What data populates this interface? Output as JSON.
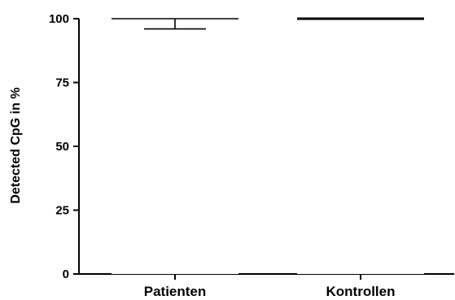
{
  "chart_data": {
    "type": "bar",
    "title": "",
    "xlabel": "",
    "ylabel": "Detected CpG in %",
    "ylim": [
      0,
      100
    ],
    "yticks": [
      0,
      25,
      50,
      75,
      100
    ],
    "ytick_labels": [
      "0",
      "25",
      "50",
      "75",
      "100"
    ],
    "categories": [
      "Patienten",
      "Kontrollen"
    ],
    "values": [
      100,
      100
    ],
    "error_lower": [
      96,
      100
    ],
    "bar_fill": "#ffffff",
    "line_color": "#000000",
    "grid": false,
    "legend": false
  }
}
